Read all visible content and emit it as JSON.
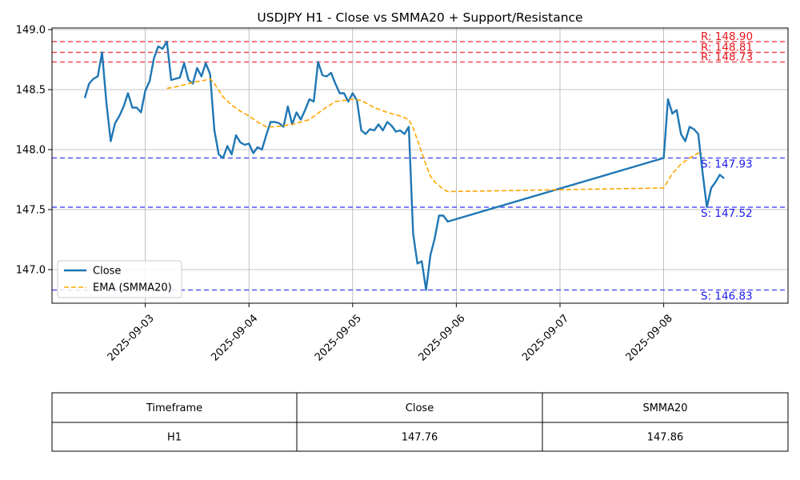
{
  "chart_data": {
    "type": "line",
    "title": "USDJPY H1 - Close vs SMMA20 + Support/Resistance",
    "xlabel": "",
    "ylabel": "",
    "ylim": [
      146.72,
      149.0
    ],
    "xlim": [
      "2025-09-02 10:00",
      "2025-09-08 21:00"
    ],
    "x_ticks": [
      "2025-09-03",
      "2025-09-04",
      "2025-09-05",
      "2025-09-06",
      "2025-09-07",
      "2025-09-08"
    ],
    "y_ticks": [
      "147.0",
      "147.5",
      "148.0",
      "148.5",
      "149.0"
    ],
    "grid": true,
    "legend": {
      "placement": "lower-left",
      "entries": [
        {
          "name": "Close",
          "color": "#1f77b4",
          "style": "solid"
        },
        {
          "name": "EMA (SMMA20)",
          "color": "#ffa500",
          "style": "dashed"
        }
      ]
    },
    "series": [
      {
        "name": "Close",
        "color": "#1f77b4",
        "points": [
          [
            "2025-09-02 10:00",
            148.43
          ],
          [
            "2025-09-02 11:00",
            148.55
          ],
          [
            "2025-09-02 12:00",
            148.59
          ],
          [
            "2025-09-02 13:00",
            148.61
          ],
          [
            "2025-09-02 14:00",
            148.81
          ],
          [
            "2025-09-02 15:00",
            148.39
          ],
          [
            "2025-09-02 16:00",
            148.07
          ],
          [
            "2025-09-02 17:00",
            148.22
          ],
          [
            "2025-09-02 18:00",
            148.28
          ],
          [
            "2025-09-02 19:00",
            148.36
          ],
          [
            "2025-09-02 20:00",
            148.47
          ],
          [
            "2025-09-02 21:00",
            148.35
          ],
          [
            "2025-09-02 22:00",
            148.35
          ],
          [
            "2025-09-02 23:00",
            148.31
          ],
          [
            "2025-09-03 00:00",
            148.49
          ],
          [
            "2025-09-03 01:00",
            148.57
          ],
          [
            "2025-09-03 02:00",
            148.76
          ],
          [
            "2025-09-03 03:00",
            148.86
          ],
          [
            "2025-09-03 04:00",
            148.84
          ],
          [
            "2025-09-03 05:00",
            148.9
          ],
          [
            "2025-09-03 06:00",
            148.58
          ],
          [
            "2025-09-03 07:00",
            148.59
          ],
          [
            "2025-09-03 08:00",
            148.6
          ],
          [
            "2025-09-03 09:00",
            148.72
          ],
          [
            "2025-09-03 10:00",
            148.58
          ],
          [
            "2025-09-03 11:00",
            148.55
          ],
          [
            "2025-09-03 12:00",
            148.68
          ],
          [
            "2025-09-03 13:00",
            148.61
          ],
          [
            "2025-09-03 14:00",
            148.72
          ],
          [
            "2025-09-03 15:00",
            148.63
          ],
          [
            "2025-09-03 16:00",
            148.16
          ],
          [
            "2025-09-03 17:00",
            147.96
          ],
          [
            "2025-09-03 18:00",
            147.93
          ],
          [
            "2025-09-03 19:00",
            148.03
          ],
          [
            "2025-09-03 20:00",
            147.96
          ],
          [
            "2025-09-03 21:00",
            148.12
          ],
          [
            "2025-09-03 22:00",
            148.06
          ],
          [
            "2025-09-03 23:00",
            148.04
          ],
          [
            "2025-09-04 00:00",
            148.05
          ],
          [
            "2025-09-04 01:00",
            147.97
          ],
          [
            "2025-09-04 02:00",
            148.02
          ],
          [
            "2025-09-04 03:00",
            148.0
          ],
          [
            "2025-09-04 04:00",
            148.12
          ],
          [
            "2025-09-04 05:00",
            148.23
          ],
          [
            "2025-09-04 06:00",
            148.23
          ],
          [
            "2025-09-04 07:00",
            148.22
          ],
          [
            "2025-09-04 08:00",
            148.19
          ],
          [
            "2025-09-04 09:00",
            148.36
          ],
          [
            "2025-09-04 10:00",
            148.21
          ],
          [
            "2025-09-04 11:00",
            148.31
          ],
          [
            "2025-09-04 12:00",
            148.25
          ],
          [
            "2025-09-04 13:00",
            148.33
          ],
          [
            "2025-09-04 14:00",
            148.42
          ],
          [
            "2025-09-04 15:00",
            148.4
          ],
          [
            "2025-09-04 16:00",
            148.73
          ],
          [
            "2025-09-04 17:00",
            148.62
          ],
          [
            "2025-09-04 18:00",
            148.61
          ],
          [
            "2025-09-04 19:00",
            148.64
          ],
          [
            "2025-09-04 20:00",
            148.55
          ],
          [
            "2025-09-04 21:00",
            148.47
          ],
          [
            "2025-09-04 22:00",
            148.47
          ],
          [
            "2025-09-04 23:00",
            148.4
          ],
          [
            "2025-09-05 00:00",
            148.47
          ],
          [
            "2025-09-05 01:00",
            148.41
          ],
          [
            "2025-09-05 02:00",
            148.16
          ],
          [
            "2025-09-05 03:00",
            148.13
          ],
          [
            "2025-09-05 04:00",
            148.17
          ],
          [
            "2025-09-05 05:00",
            148.16
          ],
          [
            "2025-09-05 06:00",
            148.21
          ],
          [
            "2025-09-05 07:00",
            148.16
          ],
          [
            "2025-09-05 08:00",
            148.23
          ],
          [
            "2025-09-05 09:00",
            148.2
          ],
          [
            "2025-09-05 10:00",
            148.15
          ],
          [
            "2025-09-05 11:00",
            148.16
          ],
          [
            "2025-09-05 12:00",
            148.13
          ],
          [
            "2025-09-05 13:00",
            148.19
          ],
          [
            "2025-09-05 14:00",
            147.3
          ],
          [
            "2025-09-05 15:00",
            147.05
          ],
          [
            "2025-09-05 16:00",
            147.07
          ],
          [
            "2025-09-05 17:00",
            146.83
          ],
          [
            "2025-09-05 18:00",
            147.12
          ],
          [
            "2025-09-05 19:00",
            147.26
          ],
          [
            "2025-09-05 20:00",
            147.45
          ],
          [
            "2025-09-05 21:00",
            147.45
          ],
          [
            "2025-09-05 22:00",
            147.4
          ],
          [
            "2025-09-08 00:00",
            147.93
          ],
          [
            "2025-09-08 01:00",
            148.42
          ],
          [
            "2025-09-08 02:00",
            148.3
          ],
          [
            "2025-09-08 03:00",
            148.33
          ],
          [
            "2025-09-08 04:00",
            148.13
          ],
          [
            "2025-09-08 05:00",
            148.07
          ],
          [
            "2025-09-08 06:00",
            148.19
          ],
          [
            "2025-09-08 07:00",
            148.17
          ],
          [
            "2025-09-08 08:00",
            148.13
          ],
          [
            "2025-09-08 09:00",
            147.81
          ],
          [
            "2025-09-08 10:00",
            147.52
          ],
          [
            "2025-09-08 11:00",
            147.68
          ],
          [
            "2025-09-08 12:00",
            147.73
          ],
          [
            "2025-09-08 13:00",
            147.79
          ],
          [
            "2025-09-08 14:00",
            147.76
          ]
        ]
      },
      {
        "name": "EMA (SMMA20)",
        "color": "#ffa500",
        "points": [
          [
            "2025-09-03 05:00",
            148.51
          ],
          [
            "2025-09-03 08:00",
            148.53
          ],
          [
            "2025-09-03 11:00",
            148.56
          ],
          [
            "2025-09-03 14:00",
            148.58
          ],
          [
            "2025-09-03 15:00",
            148.59
          ],
          [
            "2025-09-03 16:00",
            148.55
          ],
          [
            "2025-09-03 18:00",
            148.44
          ],
          [
            "2025-09-03 20:00",
            148.37
          ],
          [
            "2025-09-03 22:00",
            148.32
          ],
          [
            "2025-09-04 00:00",
            148.28
          ],
          [
            "2025-09-04 02:00",
            148.23
          ],
          [
            "2025-09-04 04:00",
            148.19
          ],
          [
            "2025-09-04 06:00",
            148.19
          ],
          [
            "2025-09-04 10:00",
            148.21
          ],
          [
            "2025-09-04 14:00",
            148.25
          ],
          [
            "2025-09-04 17:00",
            148.33
          ],
          [
            "2025-09-04 20:00",
            148.4
          ],
          [
            "2025-09-05 00:00",
            148.42
          ],
          [
            "2025-09-05 02:00",
            148.41
          ],
          [
            "2025-09-05 05:00",
            148.35
          ],
          [
            "2025-09-05 08:00",
            148.31
          ],
          [
            "2025-09-05 11:00",
            148.28
          ],
          [
            "2025-09-05 13:00",
            148.25
          ],
          [
            "2025-09-05 14:00",
            148.18
          ],
          [
            "2025-09-05 15:00",
            148.08
          ],
          [
            "2025-09-05 17:00",
            147.87
          ],
          [
            "2025-09-05 18:00",
            147.78
          ],
          [
            "2025-09-05 19:00",
            147.73
          ],
          [
            "2025-09-05 21:00",
            147.67
          ],
          [
            "2025-09-05 22:00",
            147.65
          ],
          [
            "2025-09-08 00:00",
            147.68
          ],
          [
            "2025-09-08 02:00",
            147.8
          ],
          [
            "2025-09-08 04:00",
            147.88
          ],
          [
            "2025-09-08 06:00",
            147.93
          ],
          [
            "2025-09-08 08:00",
            147.97
          ],
          [
            "2025-09-08 09:00",
            147.97
          ]
        ]
      }
    ],
    "levels": [
      {
        "kind": "resistance",
        "value": 148.9,
        "label": "R: 148.90",
        "color": "#e8141a"
      },
      {
        "kind": "resistance",
        "value": 148.81,
        "label": "R: 148.81",
        "color": "#e8141a"
      },
      {
        "kind": "resistance",
        "value": 148.73,
        "label": "R: 148.73",
        "color": "#e8141a"
      },
      {
        "kind": "support",
        "value": 147.93,
        "label": "S: 147.93",
        "color": "#1a1aee"
      },
      {
        "kind": "support",
        "value": 147.52,
        "label": "S: 147.52",
        "color": "#1a1aee"
      },
      {
        "kind": "support",
        "value": 146.83,
        "label": "S: 146.83",
        "color": "#1a1aee"
      }
    ]
  },
  "table": {
    "headers": [
      "Timeframe",
      "Close",
      "SMMA20"
    ],
    "rows": [
      [
        "H1",
        "147.76",
        "147.86"
      ]
    ]
  }
}
